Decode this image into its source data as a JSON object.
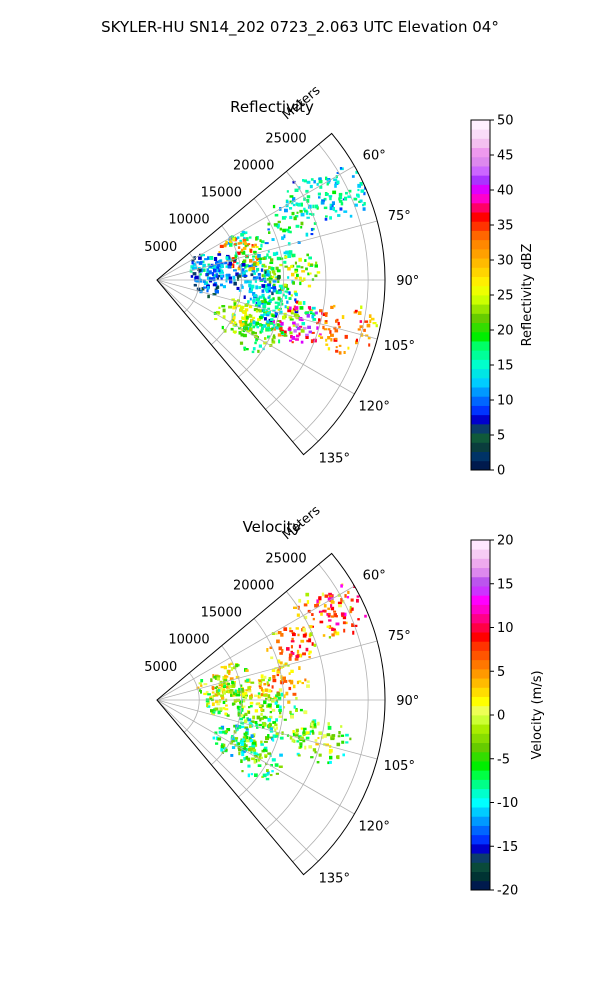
{
  "figure": {
    "title": "SKYLER-HU  SN14_202  0723_2.063 UTC Elevation 04°"
  },
  "chart_data": [
    {
      "type": "heatmap",
      "subtype": "polar-sector",
      "title": "Reflectivity",
      "radial_label": "Meters",
      "radial_ticks": [
        5000,
        10000,
        15000,
        20000,
        25000
      ],
      "radial_tick_labels": [
        "5000",
        "10000",
        "15000",
        "20000",
        "25000"
      ],
      "rlim": [
        0,
        27000
      ],
      "azimuth_ticks": [
        60,
        75,
        90,
        105,
        120,
        135
      ],
      "azimuth_tick_labels": [
        "60°",
        "75°",
        "90°",
        "105°",
        "120°",
        "135°"
      ],
      "azimuth_range": [
        50,
        140
      ],
      "grid": true,
      "colorbar": {
        "label": "Reflectivity dBZ",
        "range": [
          0,
          50
        ],
        "ticks": [
          0,
          5,
          10,
          15,
          20,
          25,
          30,
          35,
          40,
          45,
          50
        ],
        "tick_labels": [
          "0",
          "5",
          "10",
          "15",
          "20",
          "25",
          "30",
          "35",
          "40",
          "45",
          "50"
        ],
        "colors": [
          "#001a4d",
          "#003366",
          "#0a3d3d",
          "#105a3a",
          "#0b3d6b",
          "#0000cc",
          "#0033ff",
          "#0066ff",
          "#0099ff",
          "#00ccff",
          "#00e5e5",
          "#00ffcc",
          "#00ff99",
          "#00ff66",
          "#00ee00",
          "#33dd00",
          "#66cc00",
          "#99e600",
          "#ccff00",
          "#eeff00",
          "#ffee00",
          "#ffd400",
          "#ffbb00",
          "#ffa000",
          "#ff8800",
          "#ff6600",
          "#ff3300",
          "#ff0000",
          "#ff0066",
          "#ff00cc",
          "#dd00ff",
          "#aa33ff",
          "#cc66ff",
          "#dd88ee",
          "#ee99ee",
          "#f4c0f0",
          "#fadcf8",
          "#fff0ff"
        ]
      },
      "cells": [
        {
          "az": 62,
          "r": 21000,
          "value": 19
        },
        {
          "az": 64,
          "r": 24000,
          "value": 18
        },
        {
          "az": 66,
          "r": 17000,
          "value": 20
        },
        {
          "az": 70,
          "r": 11000,
          "value": 21
        },
        {
          "az": 72,
          "r": 10000,
          "value": 36
        },
        {
          "az": 75,
          "r": 6000,
          "value": 17
        },
        {
          "az": 80,
          "r": 8000,
          "value": 14
        },
        {
          "az": 84,
          "r": 14000,
          "value": 22
        },
        {
          "az": 86,
          "r": 16000,
          "value": 27
        },
        {
          "az": 90,
          "r": 6000,
          "value": 12
        },
        {
          "az": 92,
          "r": 12000,
          "value": 14
        },
        {
          "az": 100,
          "r": 14000,
          "value": 17
        },
        {
          "az": 104,
          "r": 16000,
          "value": 24
        },
        {
          "az": 106,
          "r": 17500,
          "value": 42
        },
        {
          "az": 104,
          "r": 23000,
          "value": 36
        },
        {
          "az": 110,
          "r": 12000,
          "value": 24
        },
        {
          "az": 114,
          "r": 10000,
          "value": 28
        },
        {
          "az": 118,
          "r": 14000,
          "value": 22
        }
      ]
    },
    {
      "type": "heatmap",
      "subtype": "polar-sector",
      "title": "Velocity",
      "radial_label": "Meters",
      "radial_ticks": [
        5000,
        10000,
        15000,
        20000,
        25000
      ],
      "radial_tick_labels": [
        "5000",
        "10000",
        "15000",
        "20000",
        "25000"
      ],
      "rlim": [
        0,
        27000
      ],
      "azimuth_ticks": [
        60,
        75,
        90,
        105,
        120,
        135
      ],
      "azimuth_tick_labels": [
        "60°",
        "75°",
        "90°",
        "105°",
        "120°",
        "135°"
      ],
      "azimuth_range": [
        50,
        140
      ],
      "grid": true,
      "colorbar": {
        "label": "Velocity (m/s)",
        "range": [
          -20,
          20
        ],
        "ticks": [
          -20,
          -15,
          -10,
          -5,
          0,
          5,
          10,
          15,
          20
        ],
        "tick_labels": [
          "-20",
          "-15",
          "-10",
          "-5",
          "0",
          "5",
          "10",
          "15",
          "20"
        ],
        "colors": [
          "#001a4d",
          "#003333",
          "#0a4a3a",
          "#0d3d6b",
          "#0000cc",
          "#0033ff",
          "#0066ff",
          "#0099ff",
          "#00ccff",
          "#00ffff",
          "#00ffcc",
          "#00ff88",
          "#00ff44",
          "#00ee00",
          "#33dd00",
          "#66cc00",
          "#88dd00",
          "#aaee00",
          "#ccff33",
          "#eeff55",
          "#ffff00",
          "#ffdd00",
          "#ffbb00",
          "#ff9900",
          "#ff7700",
          "#ff5500",
          "#ff3300",
          "#ff0000",
          "#ff0044",
          "#ff0088",
          "#ff00cc",
          "#ff00ff",
          "#cc33ff",
          "#bb55ee",
          "#dd88ee",
          "#eeaaee",
          "#f6ccf4",
          "#ffe8ff"
        ]
      },
      "cells": [
        {
          "az": 62,
          "r": 22000,
          "value": 9
        },
        {
          "az": 64,
          "r": 25000,
          "value": 13
        },
        {
          "az": 68,
          "r": 17000,
          "value": 9
        },
        {
          "az": 74,
          "r": 9000,
          "value": 5
        },
        {
          "az": 78,
          "r": 7000,
          "value": 4
        },
        {
          "az": 82,
          "r": 15000,
          "value": 8
        },
        {
          "az": 86,
          "r": 12000,
          "value": 3
        },
        {
          "az": 90,
          "r": 8000,
          "value": 2
        },
        {
          "az": 96,
          "r": 12000,
          "value": 1
        },
        {
          "az": 100,
          "r": 16000,
          "value": 0
        },
        {
          "az": 104,
          "r": 20000,
          "value": 1
        },
        {
          "az": 110,
          "r": 12000,
          "value": -2
        },
        {
          "az": 116,
          "r": 10000,
          "value": -3
        },
        {
          "az": 120,
          "r": 14000,
          "value": -2
        }
      ]
    }
  ]
}
